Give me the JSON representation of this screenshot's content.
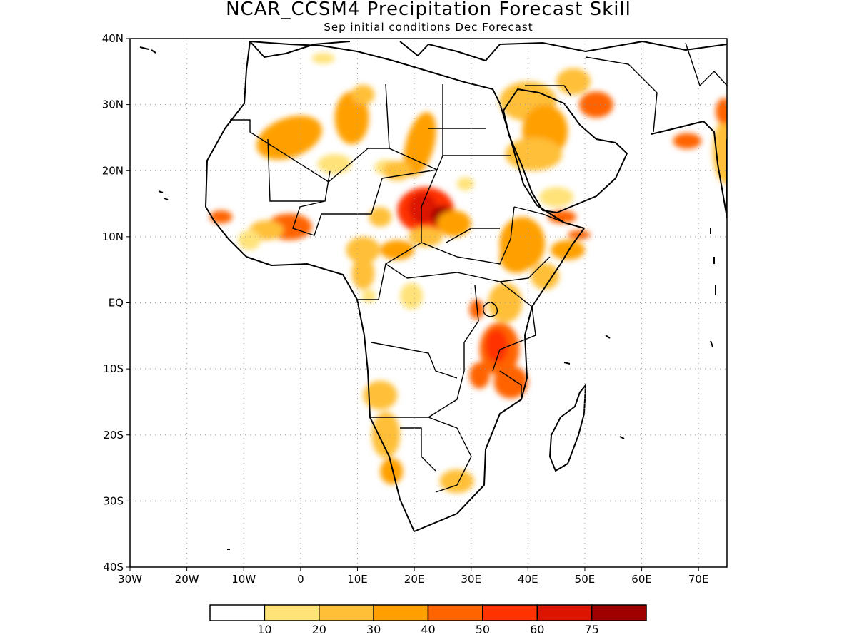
{
  "title": "NCAR_CCSM4 Precipitation Forecast Skill",
  "subtitle": "Sep initial conditions  Dec Forecast",
  "chart_data": {
    "type": "heatmap",
    "xlim": [
      -30,
      75
    ],
    "ylim": [
      -40,
      40
    ],
    "grid": true,
    "x_ticks": [
      {
        "v": -30,
        "label": "30W"
      },
      {
        "v": -20,
        "label": "20W"
      },
      {
        "v": -10,
        "label": "10W"
      },
      {
        "v": 0,
        "label": "0"
      },
      {
        "v": 10,
        "label": "10E"
      },
      {
        "v": 20,
        "label": "20E"
      },
      {
        "v": 30,
        "label": "30E"
      },
      {
        "v": 40,
        "label": "40E"
      },
      {
        "v": 50,
        "label": "50E"
      },
      {
        "v": 60,
        "label": "60E"
      },
      {
        "v": 70,
        "label": "70E"
      }
    ],
    "y_ticks": [
      {
        "v": 40,
        "label": "40N"
      },
      {
        "v": 30,
        "label": "30N"
      },
      {
        "v": 20,
        "label": "20N"
      },
      {
        "v": 10,
        "label": "10N"
      },
      {
        "v": 0,
        "label": "EQ"
      },
      {
        "v": -10,
        "label": "10S"
      },
      {
        "v": -20,
        "label": "20S"
      },
      {
        "v": -30,
        "label": "30S"
      },
      {
        "v": -40,
        "label": "40S"
      }
    ],
    "levels": [
      10,
      20,
      30,
      40,
      50,
      60,
      75
    ],
    "level_labels": [
      "10",
      "20",
      "30",
      "40",
      "50",
      "60",
      "75"
    ],
    "colors": [
      "#ffffff",
      "#ffe278",
      "#ffbf37",
      "#ffa000",
      "#ff6400",
      "#ff3200",
      "#dc1400",
      "#a00000"
    ],
    "skill_regions": [
      {
        "lon": -2,
        "lat": 25,
        "rx": 6,
        "ry": 3,
        "rot": -20,
        "value": 38
      },
      {
        "lon": 9,
        "lat": 28,
        "rx": 3,
        "ry": 4,
        "value": 30
      },
      {
        "lon": 11,
        "lat": 31.5,
        "rx": 2,
        "ry": 1.5,
        "value": 22
      },
      {
        "lon": 4,
        "lat": 37,
        "rx": 2,
        "ry": 0.8,
        "value": 15
      },
      {
        "lon": 21,
        "lat": 24,
        "rx": 2.5,
        "ry": 5,
        "rot": 15,
        "value": 30
      },
      {
        "lon": 6,
        "lat": 21,
        "rx": 3,
        "ry": 1.5,
        "value": 18
      },
      {
        "lon": 15,
        "lat": 20.5,
        "rx": 2,
        "ry": 1.2,
        "value": 16
      },
      {
        "lon": 17,
        "lat": 20,
        "rx": 2.5,
        "ry": 1.5,
        "value": 22
      },
      {
        "lon": 22,
        "lat": 14,
        "rx": 5,
        "ry": 3.5,
        "value": 50
      },
      {
        "lon": 21.5,
        "lat": 14.3,
        "rx": 2.5,
        "ry": 2.3,
        "value": 72
      },
      {
        "lon": 25,
        "lat": 13,
        "rx": 2,
        "ry": 1.7,
        "value": 80
      },
      {
        "lon": 27,
        "lat": 12,
        "rx": 3,
        "ry": 2,
        "value": 35
      },
      {
        "lon": 14,
        "lat": 13,
        "rx": 2,
        "ry": 1.5,
        "value": 22
      },
      {
        "lon": -2,
        "lat": 11.5,
        "rx": 4,
        "ry": 2,
        "value": 45
      },
      {
        "lon": -6,
        "lat": 11,
        "rx": 3,
        "ry": 1.5,
        "value": 25
      },
      {
        "lon": -14,
        "lat": 13,
        "rx": 2,
        "ry": 1,
        "value": 40
      },
      {
        "lon": -9,
        "lat": 9.5,
        "rx": 2,
        "ry": 1.5,
        "value": 18
      },
      {
        "lon": 11,
        "lat": 8,
        "rx": 3,
        "ry": 2,
        "value": 22
      },
      {
        "lon": 17,
        "lat": 8,
        "rx": 3,
        "ry": 1.5,
        "value": 30
      },
      {
        "lon": 22,
        "lat": 10,
        "rx": 3,
        "ry": 1.5,
        "value": 22
      },
      {
        "lon": 29,
        "lat": 18,
        "rx": 1.5,
        "ry": 1,
        "value": 16
      },
      {
        "lon": 11,
        "lat": 4.5,
        "rx": 2,
        "ry": 2.5,
        "value": 20
      },
      {
        "lon": 12,
        "lat": 1,
        "rx": 1.2,
        "ry": 1,
        "value": 18
      },
      {
        "lon": 19.5,
        "lat": 1,
        "rx": 2,
        "ry": 2,
        "value": 16
      },
      {
        "lon": 40,
        "lat": 30.5,
        "rx": 5,
        "ry": 3,
        "value": 25
      },
      {
        "lon": 43,
        "lat": 26,
        "rx": 4,
        "ry": 4,
        "value": 30
      },
      {
        "lon": 41,
        "lat": 22.5,
        "rx": 5,
        "ry": 2.5,
        "value": 28
      },
      {
        "lon": 48,
        "lat": 33.5,
        "rx": 3,
        "ry": 2,
        "value": 28
      },
      {
        "lon": 52,
        "lat": 30,
        "rx": 3,
        "ry": 2,
        "value": 40
      },
      {
        "lon": 45,
        "lat": 16,
        "rx": 3,
        "ry": 1.5,
        "value": 16
      },
      {
        "lon": 46,
        "lat": 13,
        "rx": 2.5,
        "ry": 1,
        "value": 45
      },
      {
        "lon": 39,
        "lat": 9,
        "rx": 4,
        "ry": 4,
        "value": 30
      },
      {
        "lon": 38,
        "lat": 7,
        "rx": 3,
        "ry": 2.5,
        "value": 38
      },
      {
        "lon": 47,
        "lat": 8,
        "rx": 3,
        "ry": 1.5,
        "value": 30
      },
      {
        "lon": 49,
        "lat": 10.3,
        "rx": 2,
        "ry": 0.7,
        "value": 48
      },
      {
        "lon": 43,
        "lat": 4,
        "rx": 2.5,
        "ry": 2,
        "value": 22
      },
      {
        "lon": 36,
        "lat": 0,
        "rx": 3,
        "ry": 3,
        "value": 20
      },
      {
        "lon": 31,
        "lat": -1,
        "rx": 1.3,
        "ry": 1.5,
        "value": 40
      },
      {
        "lon": 35,
        "lat": -7,
        "rx": 3.5,
        "ry": 4,
        "value": 45
      },
      {
        "lon": 34.5,
        "lat": -6.5,
        "rx": 2,
        "ry": 2.5,
        "value": 55
      },
      {
        "lon": 37,
        "lat": -12,
        "rx": 3,
        "ry": 2.5,
        "value": 40
      },
      {
        "lon": 31.5,
        "lat": -11,
        "rx": 1.8,
        "ry": 2,
        "value": 45
      },
      {
        "lon": 14,
        "lat": -14,
        "rx": 3,
        "ry": 2.2,
        "value": 26
      },
      {
        "lon": 15,
        "lat": -20,
        "rx": 2.5,
        "ry": 3.5,
        "value": 28
      },
      {
        "lon": 16,
        "lat": -25.5,
        "rx": 2,
        "ry": 2,
        "value": 30
      },
      {
        "lon": 27.5,
        "lat": -27,
        "rx": 3,
        "ry": 1.8,
        "value": 20
      },
      {
        "lon": 68,
        "lat": 24.5,
        "rx": 2.5,
        "ry": 1.2,
        "value": 45
      },
      {
        "lon": 75,
        "lat": 23,
        "rx": 2.5,
        "ry": 5,
        "value": 28
      },
      {
        "lon": 74.5,
        "lat": 29,
        "rx": 1.5,
        "ry": 2,
        "value": 45
      }
    ]
  }
}
